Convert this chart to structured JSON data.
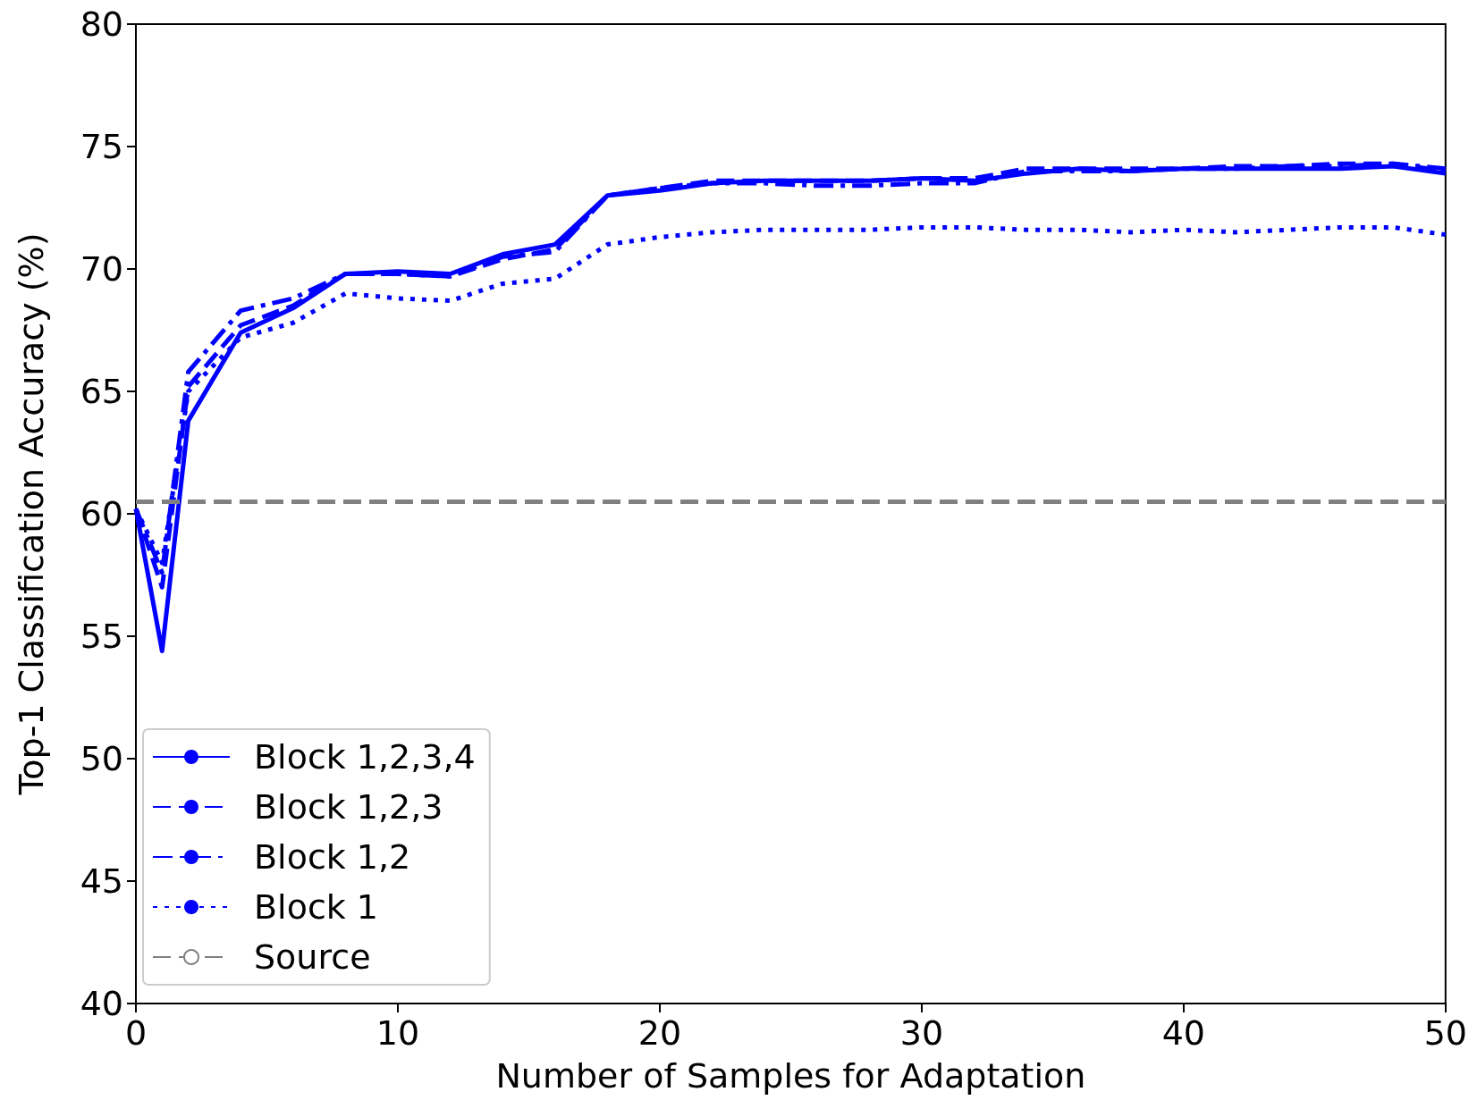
{
  "chart_data": {
    "type": "line",
    "xlabel": "Number of Samples for Adaptation",
    "ylabel": "Top-1 Classification Accuracy (%)",
    "x": [
      0,
      1,
      2,
      4,
      6,
      8,
      10,
      12,
      14,
      16,
      18,
      20,
      22,
      24,
      26,
      28,
      30,
      32,
      34,
      36,
      38,
      40,
      42,
      44,
      46,
      48,
      50
    ],
    "series": [
      {
        "name": "Block 1,2,3,4",
        "color": "#0000ff",
        "line_style": "solid",
        "values": [
          60.2,
          54.4,
          63.8,
          67.4,
          68.4,
          69.8,
          69.9,
          69.8,
          70.6,
          71.0,
          73.0,
          73.2,
          73.5,
          73.6,
          73.6,
          73.6,
          73.7,
          73.6,
          73.9,
          74.1,
          74.0,
          74.1,
          74.1,
          74.1,
          74.1,
          74.2,
          73.9
        ]
      },
      {
        "name": "Block 1,2,3",
        "color": "#0000ff",
        "line_style": "dashed",
        "values": [
          60.2,
          57.0,
          65.2,
          67.7,
          68.5,
          69.8,
          69.8,
          69.7,
          70.4,
          70.8,
          73.0,
          73.3,
          73.6,
          73.6,
          73.6,
          73.6,
          73.7,
          73.7,
          74.1,
          74.1,
          74.1,
          74.1,
          74.2,
          74.2,
          74.3,
          74.3,
          74.0
        ]
      },
      {
        "name": "Block 1,2",
        "color": "#0000ff",
        "line_style": "dashdot",
        "values": [
          60.2,
          57.6,
          65.8,
          68.3,
          68.8,
          69.8,
          69.8,
          69.7,
          70.5,
          70.7,
          73.0,
          73.3,
          73.5,
          73.5,
          73.4,
          73.4,
          73.5,
          73.5,
          74.0,
          74.0,
          74.0,
          74.1,
          74.1,
          74.2,
          74.2,
          74.3,
          74.1
        ]
      },
      {
        "name": "Block 1",
        "color": "#0000ff",
        "line_style": "dotted",
        "values": [
          60.2,
          58.0,
          65.0,
          67.2,
          67.8,
          69.0,
          68.8,
          68.7,
          69.4,
          69.6,
          71.0,
          71.3,
          71.5,
          71.6,
          71.6,
          71.6,
          71.7,
          71.7,
          71.6,
          71.6,
          71.5,
          71.6,
          71.5,
          71.6,
          71.7,
          71.7,
          71.4
        ]
      }
    ],
    "ref_lines": [
      {
        "axis": "y",
        "value": 60.5,
        "label": "Source",
        "color": "#808080",
        "line_style": "dashed"
      }
    ],
    "xlim": [
      0,
      50
    ],
    "xticks": [
      0,
      10,
      20,
      30,
      40,
      50
    ],
    "ylim": [
      40,
      80
    ],
    "yticks": [
      40,
      45,
      50,
      55,
      60,
      65,
      70,
      75,
      80
    ],
    "grid": false,
    "legend": "bottom left",
    "marker": "none"
  }
}
